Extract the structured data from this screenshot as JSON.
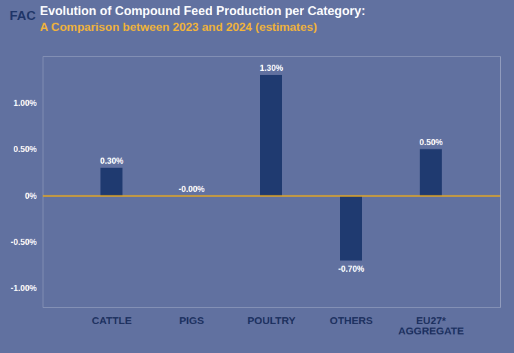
{
  "chart_data": {
    "type": "bar",
    "logo": "FAC",
    "title": "Evolution of Compound Feed Production per Category:",
    "subtitle": "A Comparison between 2023 and 2024 (estimates)",
    "categories": [
      "CATTLE",
      "PIGS",
      "POULTRY",
      "OTHERS",
      "EU27* AGGREGATE"
    ],
    "values": [
      0.3,
      0,
      1.3,
      -0.7,
      0.5
    ],
    "value_labels": [
      "0.30%",
      "-0.00%",
      "1.30%",
      "-0.70%",
      "0.50%"
    ],
    "color": "#1f3a70",
    "ylim": [
      -1.2,
      1.5
    ],
    "yticks": [
      {
        "value": -1,
        "label": "-1.00%"
      },
      {
        "value": -0.5,
        "label": "-0.50%"
      },
      {
        "value": 0,
        "label": "0%"
      },
      {
        "value": 0.5,
        "label": "0.50%"
      },
      {
        "value": 1,
        "label": "1.00%"
      }
    ],
    "grid": false,
    "data_labels": true
  }
}
